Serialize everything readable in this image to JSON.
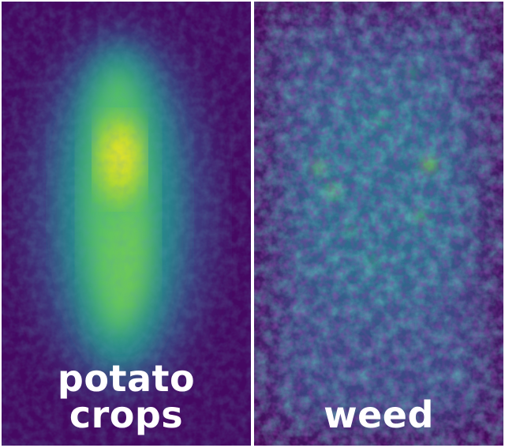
{
  "panels": [
    {
      "id": "potato",
      "caption": "potato crops",
      "colormap": "viridis"
    },
    {
      "id": "weed",
      "caption": "weed",
      "colormap": "viridis"
    }
  ],
  "colors": {
    "viridis_dark": "#440154",
    "viridis_deep": "#46106f",
    "viridis_mid": "#3b528b",
    "viridis_teal": "#21918c",
    "viridis_green": "#5ec962",
    "viridis_yellow": "#fde725",
    "separator": "#ffffff"
  }
}
